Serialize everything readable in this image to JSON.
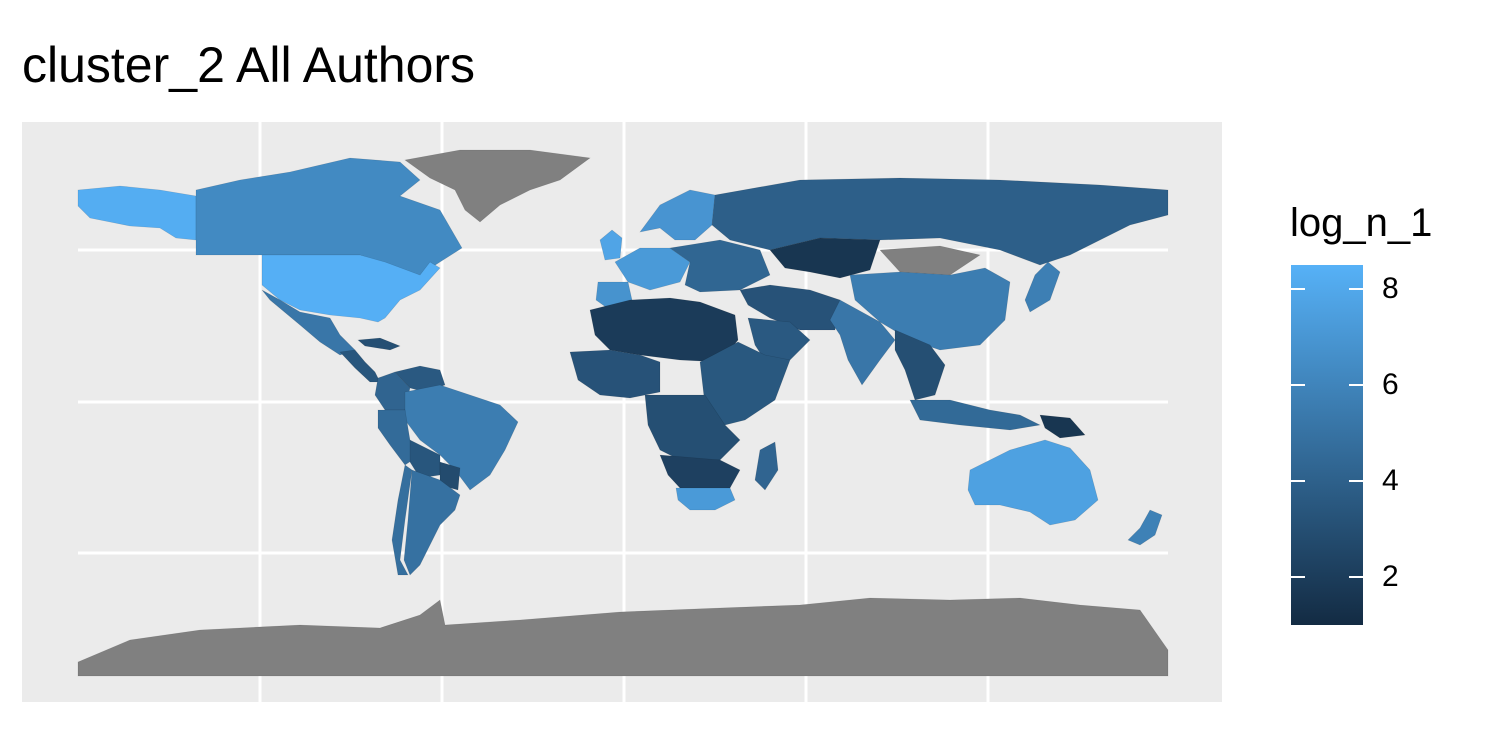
{
  "title": "cluster_2 All Authors",
  "legend": {
    "title": "log_n_1",
    "ticks": [
      {
        "value": 2,
        "label": "2"
      },
      {
        "value": 4,
        "label": "4"
      },
      {
        "value": 6,
        "label": "6"
      },
      {
        "value": 8,
        "label": "8"
      }
    ],
    "range": [
      1,
      8.5
    ]
  },
  "colors": {
    "panel_background": "#ebebeb",
    "grid": "#ffffff",
    "no_data": "#808080",
    "scale_low": "#132b43",
    "scale_high": "#56b1f7"
  },
  "chart_data": {
    "type": "choropleth",
    "fill_variable": "log_n_1",
    "grid": true,
    "legend_position": "right",
    "regions": [
      {
        "name": "Alaska",
        "value": 8.3
      },
      {
        "name": "Canada",
        "value": 6.3
      },
      {
        "name": "United States",
        "value": 8.4
      },
      {
        "name": "Mexico",
        "value": 5.2
      },
      {
        "name": "Central America",
        "value": 3.4
      },
      {
        "name": "Cuba",
        "value": 3.0
      },
      {
        "name": "Greenland",
        "value": null
      },
      {
        "name": "Colombia",
        "value": 4.2
      },
      {
        "name": "Venezuela",
        "value": 3.6
      },
      {
        "name": "Peru",
        "value": 4.6
      },
      {
        "name": "Brazil",
        "value": 5.6
      },
      {
        "name": "Bolivia",
        "value": 3.4
      },
      {
        "name": "Paraguay",
        "value": 2.8
      },
      {
        "name": "Chile",
        "value": 4.8
      },
      {
        "name": "Argentina",
        "value": 4.9
      },
      {
        "name": "United Kingdom",
        "value": 7.8
      },
      {
        "name": "Western Europe",
        "value": 7.2
      },
      {
        "name": "Iberia",
        "value": 6.8
      },
      {
        "name": "Scandinavia",
        "value": 6.9
      },
      {
        "name": "Eastern Europe",
        "value": 4.3
      },
      {
        "name": "Russia",
        "value": 3.9
      },
      {
        "name": "Kazakhstan",
        "value": 1.6
      },
      {
        "name": "Mongolia",
        "value": null
      },
      {
        "name": "China",
        "value": 5.6
      },
      {
        "name": "Japan",
        "value": 5.7
      },
      {
        "name": "India",
        "value": 5.2
      },
      {
        "name": "Middle East",
        "value": 3.2
      },
      {
        "name": "Arabian Peninsula",
        "value": 3.6
      },
      {
        "name": "Southeast Asia",
        "value": 3.0
      },
      {
        "name": "Indonesia",
        "value": 4.5
      },
      {
        "name": "North Africa",
        "value": 1.9
      },
      {
        "name": "West Africa",
        "value": 3.2
      },
      {
        "name": "East Africa",
        "value": 3.5
      },
      {
        "name": "Central Africa",
        "value": 3.0
      },
      {
        "name": "Southern Africa",
        "value": 2.2
      },
      {
        "name": "South Africa",
        "value": 7.2
      },
      {
        "name": "Madagascar",
        "value": 4.2
      },
      {
        "name": "Australia",
        "value": 7.6
      },
      {
        "name": "New Zealand",
        "value": 5.8
      },
      {
        "name": "Papua New Guinea",
        "value": 1.6
      },
      {
        "name": "Antarctica",
        "value": null
      }
    ]
  }
}
